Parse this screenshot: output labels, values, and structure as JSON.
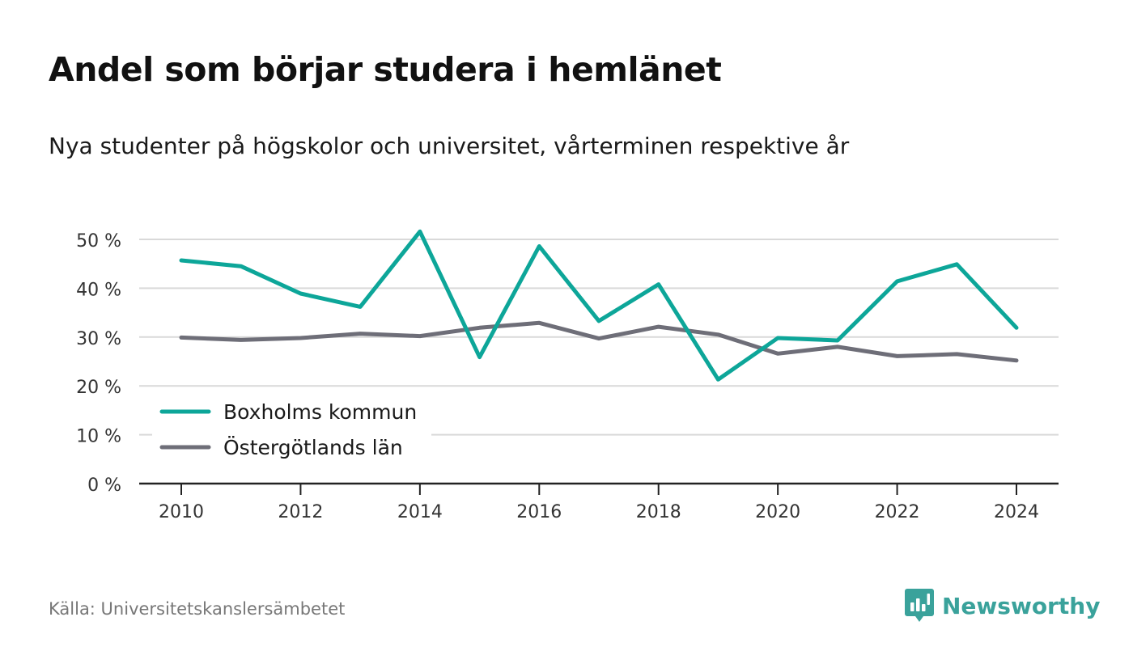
{
  "title": "Andel som börjar studera i hemlänet",
  "subtitle": "Nya studenter på högskolor och universitet, vårterminen respektive år",
  "source": "Källa: Universitetskanslersämbetet",
  "brand": {
    "name": "Newsworthy",
    "icon": "newsworthy-logo-icon",
    "color": "#3aa29b"
  },
  "chart_data": {
    "type": "line",
    "x": [
      2010,
      2011,
      2012,
      2013,
      2014,
      2015,
      2016,
      2017,
      2018,
      2019,
      2020,
      2021,
      2022,
      2023,
      2024
    ],
    "xticks": [
      2010,
      2012,
      2014,
      2016,
      2018,
      2020,
      2022,
      2024
    ],
    "yticks": [
      0,
      10,
      20,
      30,
      40,
      50
    ],
    "ytick_suffix": " %",
    "ylim": [
      0,
      50
    ],
    "grid": true,
    "legend_position": "bottom-left",
    "series": [
      {
        "name": "Boxholms kommun",
        "color": "#0da699",
        "values": [
          45.7,
          44.5,
          38.9,
          36.2,
          51.6,
          25.9,
          48.6,
          33.3,
          40.8,
          21.3,
          29.8,
          29.3,
          41.4,
          44.9,
          31.9
        ]
      },
      {
        "name": "Östergötlands län",
        "color": "#6e6e78",
        "values": [
          29.9,
          29.4,
          29.8,
          30.7,
          30.2,
          31.9,
          32.9,
          29.7,
          32.1,
          30.5,
          26.6,
          28.0,
          26.1,
          26.5,
          25.2
        ]
      }
    ]
  }
}
